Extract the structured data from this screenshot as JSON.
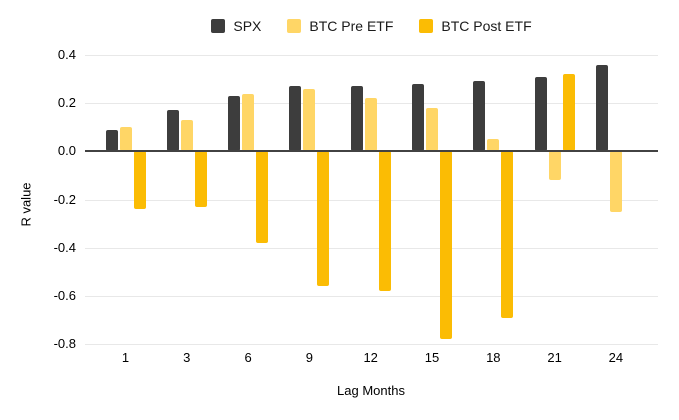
{
  "chart_data": {
    "type": "bar",
    "title": "",
    "categories": [
      "1",
      "3",
      "6",
      "9",
      "12",
      "15",
      "18",
      "21",
      "24"
    ],
    "series": [
      {
        "name": "SPX",
        "color": "#3D3D3D",
        "values": [
          0.09,
          0.17,
          0.23,
          0.27,
          0.27,
          0.28,
          0.29,
          0.31,
          0.36
        ]
      },
      {
        "name": "BTC Pre ETF",
        "color": "#FFD666",
        "values": [
          0.1,
          0.13,
          0.24,
          0.26,
          0.22,
          0.18,
          0.05,
          -0.12,
          -0.25
        ]
      },
      {
        "name": "BTC Post ETF",
        "color": "#FBBC04",
        "values": [
          -0.24,
          -0.23,
          -0.38,
          -0.56,
          -0.58,
          -0.78,
          -0.69,
          0.32,
          null
        ]
      }
    ],
    "xlabel": "Lag Months",
    "ylabel": "R value",
    "ylim": [
      -0.8,
      0.4
    ],
    "ytick_labels": [
      "0.4",
      "0.2",
      "0.0",
      "-0.2",
      "-0.4",
      "-0.6",
      "-0.8"
    ],
    "grid": true,
    "legend_position": "top",
    "colors": {
      "background": "#FFFFFF",
      "grid_line": "#E8E8E8",
      "zero_line": "#424242",
      "text": "#000000"
    }
  }
}
